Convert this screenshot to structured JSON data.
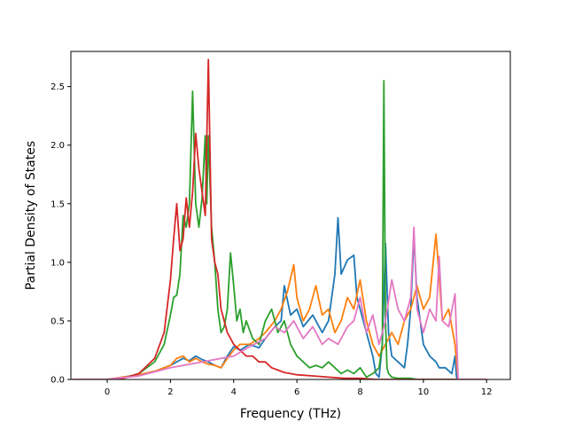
{
  "chart_data": {
    "type": "line",
    "title": "",
    "xlabel": "Frequency (THz)",
    "ylabel": "Partial Density of States",
    "xlim": [
      -1.15,
      12.75
    ],
    "ylim": [
      0.0,
      2.8
    ],
    "xticks": [
      0,
      2,
      4,
      6,
      8,
      10,
      12
    ],
    "yticks": [
      0.0,
      0.5,
      1.0,
      1.5,
      2.0,
      2.5
    ],
    "xtick_labels": [
      "0",
      "2",
      "4",
      "6",
      "8",
      "10",
      "12"
    ],
    "ytick_labels": [
      "0.0",
      "0.5",
      "1.0",
      "1.5",
      "2.0",
      "2.5"
    ],
    "grid": false,
    "legend": false,
    "series": [
      {
        "color": "#1f77b4",
        "x": [
          -1.1,
          0.0,
          1.0,
          1.5,
          2.0,
          2.2,
          2.4,
          2.6,
          2.8,
          3.0,
          3.2,
          3.4,
          3.6,
          3.8,
          4.0,
          4.2,
          4.5,
          4.8,
          5.0,
          5.3,
          5.5,
          5.6,
          5.8,
          6.0,
          6.2,
          6.5,
          6.8,
          7.0,
          7.2,
          7.3,
          7.4,
          7.6,
          7.8,
          7.9,
          8.0,
          8.2,
          8.4,
          8.5,
          8.6,
          8.7,
          8.8,
          8.9,
          9.0,
          9.2,
          9.4,
          9.5,
          9.6,
          9.7,
          9.8,
          10.0,
          10.2,
          10.4,
          10.5,
          10.7,
          10.9,
          11.0,
          11.05,
          11.1,
          12.0
        ],
        "y": [
          0.0,
          0.0,
          0.04,
          0.07,
          0.12,
          0.15,
          0.18,
          0.16,
          0.2,
          0.17,
          0.15,
          0.12,
          0.1,
          0.2,
          0.28,
          0.25,
          0.3,
          0.27,
          0.35,
          0.45,
          0.5,
          0.8,
          0.55,
          0.6,
          0.45,
          0.55,
          0.4,
          0.5,
          0.9,
          1.38,
          0.9,
          1.02,
          1.06,
          0.7,
          0.6,
          0.4,
          0.2,
          0.05,
          0.02,
          0.3,
          1.16,
          0.4,
          0.2,
          0.15,
          0.1,
          0.3,
          0.6,
          1.22,
          0.7,
          0.3,
          0.2,
          0.15,
          0.1,
          0.1,
          0.05,
          0.2,
          0.02,
          0.0,
          0.0
        ]
      },
      {
        "color": "#ff7f0e",
        "x": [
          -1.1,
          0.0,
          1.0,
          1.5,
          2.0,
          2.2,
          2.4,
          2.6,
          2.8,
          3.0,
          3.2,
          3.4,
          3.6,
          3.8,
          4.0,
          4.2,
          4.5,
          4.8,
          5.0,
          5.3,
          5.5,
          5.7,
          5.9,
          6.0,
          6.2,
          6.4,
          6.6,
          6.8,
          7.0,
          7.2,
          7.4,
          7.6,
          7.8,
          8.0,
          8.2,
          8.4,
          8.6,
          8.8,
          9.0,
          9.2,
          9.4,
          9.6,
          9.8,
          10.0,
          10.2,
          10.4,
          10.6,
          10.8,
          11.0,
          11.1,
          12.0
        ],
        "y": [
          0.0,
          0.0,
          0.04,
          0.07,
          0.12,
          0.18,
          0.2,
          0.15,
          0.18,
          0.15,
          0.13,
          0.12,
          0.1,
          0.18,
          0.25,
          0.3,
          0.3,
          0.35,
          0.4,
          0.5,
          0.6,
          0.75,
          0.98,
          0.7,
          0.5,
          0.6,
          0.8,
          0.55,
          0.6,
          0.4,
          0.5,
          0.7,
          0.6,
          0.85,
          0.5,
          0.3,
          0.2,
          0.3,
          0.4,
          0.3,
          0.5,
          0.6,
          0.8,
          0.6,
          0.7,
          1.24,
          0.5,
          0.6,
          0.3,
          0.0,
          0.0
        ]
      },
      {
        "color": "#2ca02c",
        "x": [
          -1.1,
          0.0,
          0.5,
          1.0,
          1.5,
          1.8,
          2.0,
          2.1,
          2.2,
          2.3,
          2.4,
          2.5,
          2.6,
          2.7,
          2.8,
          2.9,
          3.0,
          3.1,
          3.15,
          3.2,
          3.3,
          3.4,
          3.5,
          3.6,
          3.7,
          3.8,
          3.9,
          4.0,
          4.1,
          4.2,
          4.3,
          4.4,
          4.6,
          4.8,
          5.0,
          5.2,
          5.4,
          5.6,
          5.8,
          6.0,
          6.2,
          6.4,
          6.6,
          6.8,
          7.0,
          7.2,
          7.4,
          7.6,
          7.8,
          8.0,
          8.2,
          8.4,
          8.6,
          8.7,
          8.75,
          8.8,
          8.85,
          8.9,
          9.0,
          9.2,
          9.4,
          9.6,
          9.8,
          10.0,
          10.2,
          10.4,
          10.6,
          10.8,
          11.0,
          11.1,
          12.0
        ],
        "y": [
          0.0,
          0.0,
          0.01,
          0.05,
          0.15,
          0.3,
          0.55,
          0.7,
          0.72,
          0.9,
          1.4,
          1.3,
          1.5,
          2.46,
          1.5,
          1.3,
          1.55,
          2.08,
          1.5,
          2.08,
          1.3,
          1.0,
          0.6,
          0.4,
          0.45,
          0.6,
          1.08,
          0.8,
          0.5,
          0.6,
          0.4,
          0.5,
          0.35,
          0.3,
          0.5,
          0.6,
          0.4,
          0.5,
          0.3,
          0.2,
          0.15,
          0.1,
          0.12,
          0.1,
          0.15,
          0.1,
          0.05,
          0.08,
          0.05,
          0.1,
          0.02,
          0.05,
          0.1,
          0.3,
          2.55,
          0.5,
          0.1,
          0.05,
          0.02,
          0.01,
          0.01,
          0.01,
          0.0,
          0.0,
          0.0,
          0.0,
          0.0,
          0.0,
          0.0,
          0.0,
          0.0
        ]
      },
      {
        "color": "#d62728",
        "x": [
          -1.1,
          0.0,
          0.5,
          1.0,
          1.5,
          1.8,
          2.0,
          2.1,
          2.2,
          2.3,
          2.4,
          2.5,
          2.6,
          2.7,
          2.8,
          2.9,
          3.0,
          3.1,
          3.2,
          3.3,
          3.4,
          3.5,
          3.6,
          3.8,
          4.0,
          4.2,
          4.4,
          4.6,
          4.8,
          5.0,
          5.2,
          5.4,
          5.6,
          5.8,
          6.0,
          6.5,
          7.0,
          7.5,
          8.0,
          8.5,
          9.0,
          10.0,
          11.0,
          12.0
        ],
        "y": [
          0.0,
          0.0,
          0.01,
          0.05,
          0.18,
          0.4,
          0.85,
          1.2,
          1.5,
          1.1,
          1.2,
          1.55,
          1.3,
          1.6,
          2.1,
          1.8,
          1.6,
          1.4,
          2.73,
          1.2,
          1.0,
          0.9,
          0.6,
          0.4,
          0.3,
          0.25,
          0.2,
          0.2,
          0.15,
          0.15,
          0.1,
          0.08,
          0.06,
          0.05,
          0.04,
          0.03,
          0.02,
          0.01,
          0.01,
          0.0,
          0.0,
          0.0,
          0.0,
          0.0
        ]
      },
      {
        "color": "#e377c2",
        "x": [
          -1.1,
          0.0,
          1.0,
          2.0,
          3.0,
          4.0,
          4.5,
          5.0,
          5.3,
          5.6,
          5.9,
          6.2,
          6.5,
          6.8,
          7.0,
          7.3,
          7.6,
          7.8,
          8.0,
          8.2,
          8.4,
          8.6,
          8.8,
          9.0,
          9.2,
          9.4,
          9.6,
          9.7,
          9.8,
          10.0,
          10.2,
          10.4,
          10.5,
          10.6,
          10.8,
          11.0,
          11.1,
          12.0
        ],
        "y": [
          0.0,
          0.0,
          0.03,
          0.1,
          0.15,
          0.2,
          0.28,
          0.35,
          0.45,
          0.4,
          0.5,
          0.35,
          0.45,
          0.3,
          0.35,
          0.3,
          0.45,
          0.5,
          0.7,
          0.4,
          0.55,
          0.3,
          0.5,
          0.85,
          0.6,
          0.5,
          0.7,
          1.3,
          0.6,
          0.4,
          0.6,
          0.5,
          1.05,
          0.5,
          0.45,
          0.73,
          0.0,
          0.0
        ]
      }
    ]
  }
}
